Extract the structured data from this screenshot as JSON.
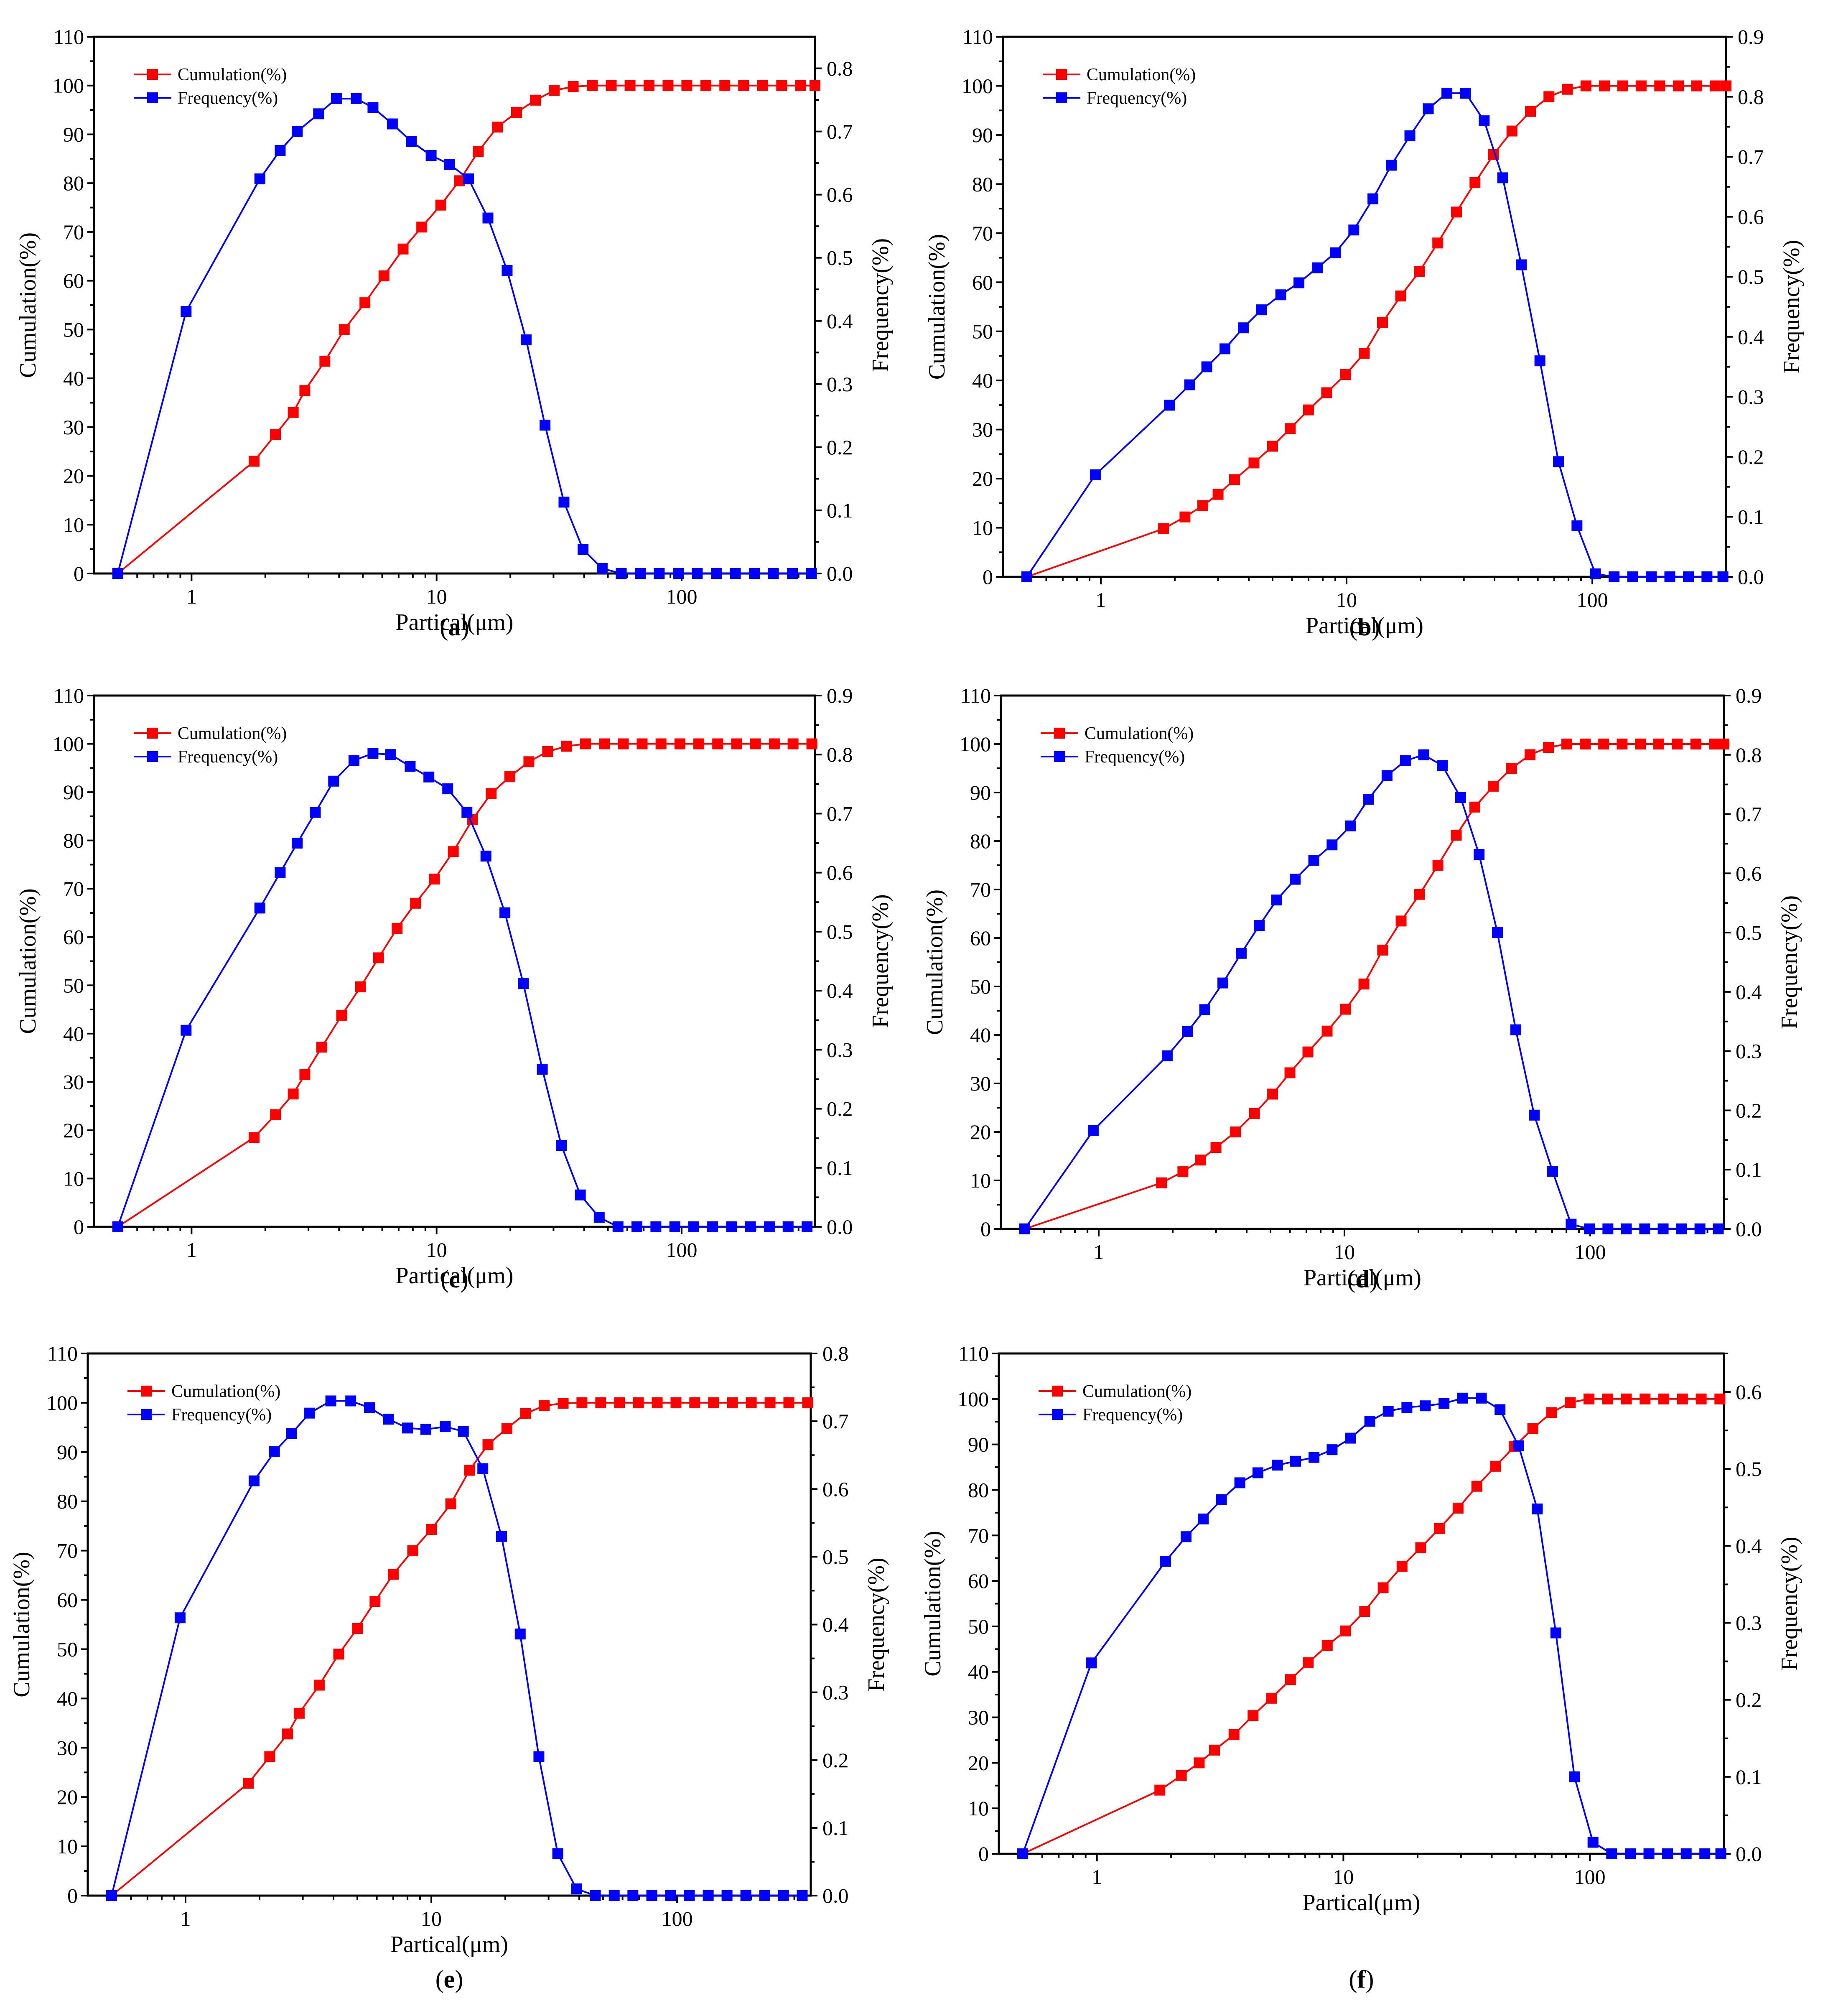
{
  "colors": {
    "cumulation": "#ff0000",
    "frequency": "#0000ff"
  },
  "chart_data": [
    {
      "panel": "a",
      "caption_open": "(",
      "caption_letter": "a",
      "caption_close": ")",
      "type": "line",
      "xscale": "log",
      "xlabel": "Partical(μm)",
      "ylabel": "Cumulation(%)",
      "y2label": "Frequency(%)",
      "xlim": [
        0.4,
        350
      ],
      "xticks": [
        1,
        10,
        100
      ],
      "xtick_labels": [
        "1",
        "10",
        "100"
      ],
      "ylim": [
        0,
        110
      ],
      "yticks": [
        0,
        10,
        20,
        30,
        40,
        50,
        60,
        70,
        80,
        90,
        100,
        110
      ],
      "ytick_labels": [
        "0",
        "10",
        "20",
        "30",
        "40",
        "50",
        "60",
        "70",
        "80",
        "90",
        "100",
        "110"
      ],
      "y2lim": [
        0,
        0.85
      ],
      "y2ticks": [
        0.0,
        0.1,
        0.2,
        0.3,
        0.4,
        0.5,
        0.6,
        0.7,
        0.8
      ],
      "y2tick_labels": [
        "0.0",
        "0.1",
        "0.2",
        "0.3",
        "0.4",
        "0.5",
        "0.6",
        "0.7",
        "0.8"
      ],
      "legend": [
        "Cumulation(%)",
        "Frequency(%)"
      ],
      "cum_x": [
        0.5,
        1.8,
        2.2,
        2.6,
        2.9,
        3.5,
        4.2,
        5.1,
        6.1,
        7.3,
        8.7,
        10.4,
        12.4,
        14.8,
        17.7,
        21.2,
        25.3,
        30.2,
        36.1,
        43.2,
        51.6,
        61.6,
        73.6,
        88,
        105,
        125.6,
        150,
        179,
        214,
        256,
        306,
        350
      ],
      "cum_y": [
        0,
        23,
        28.5,
        33,
        37.5,
        43.5,
        50,
        55.5,
        61,
        66.5,
        71,
        75.5,
        80.5,
        86.5,
        91.5,
        94.5,
        97,
        99,
        99.8,
        100,
        100,
        100,
        100,
        100,
        100,
        100,
        100,
        100,
        100,
        100,
        100,
        100
      ],
      "freq_x": [
        0.5,
        0.95,
        1.9,
        2.3,
        2.7,
        3.3,
        3.9,
        4.7,
        5.5,
        6.6,
        7.9,
        9.5,
        11.3,
        13.5,
        16.2,
        19.4,
        23.2,
        27.7,
        33.1,
        39.6,
        47.4,
        56.7,
        67.8,
        81,
        96.9,
        115.8,
        138.5,
        165.6,
        198,
        236.8,
        283.2,
        338.6
      ],
      "freq_y": [
        0,
        0.415,
        0.625,
        0.67,
        0.7,
        0.728,
        0.752,
        0.752,
        0.738,
        0.712,
        0.684,
        0.662,
        0.648,
        0.625,
        0.563,
        0.48,
        0.37,
        0.235,
        0.113,
        0.038,
        0.008,
        0,
        0,
        0,
        0,
        0,
        0,
        0,
        0,
        0,
        0,
        0
      ]
    },
    {
      "panel": "b",
      "caption_open": "(",
      "caption_letter": "b",
      "caption_close": ")",
      "type": "line",
      "xscale": "log",
      "xlabel": "Partical(μm)",
      "ylabel": "Cumulation(%)",
      "y2label": "Frequency(%)",
      "xlim": [
        0.4,
        350
      ],
      "xticks": [
        1,
        10,
        100
      ],
      "xtick_labels": [
        "1",
        "10",
        "100"
      ],
      "ylim": [
        0,
        110
      ],
      "yticks": [
        0,
        10,
        20,
        30,
        40,
        50,
        60,
        70,
        80,
        90,
        100,
        110
      ],
      "ytick_labels": [
        "0",
        "10",
        "20",
        "30",
        "40",
        "50",
        "60",
        "70",
        "80",
        "90",
        "100",
        "110"
      ],
      "y2lim": [
        0,
        0.9
      ],
      "y2ticks": [
        0.0,
        0.1,
        0.2,
        0.3,
        0.4,
        0.5,
        0.6,
        0.7,
        0.8,
        0.9
      ],
      "y2tick_labels": [
        "0.0",
        "0.1",
        "0.2",
        "0.3",
        "0.4",
        "0.5",
        "0.6",
        "0.7",
        "0.8",
        "0.9"
      ],
      "legend": [
        "Cumulation(%)",
        "Frequency(%)"
      ],
      "cum_x": [
        0.5,
        1.8,
        2.2,
        2.6,
        3.0,
        3.5,
        4.2,
        5.0,
        5.9,
        7.0,
        8.3,
        9.9,
        11.8,
        14.0,
        16.6,
        19.8,
        23.5,
        28.0,
        33.3,
        39.6,
        47.1,
        56.0,
        66.6,
        79.2,
        94.2,
        112,
        133,
        158,
        188,
        224,
        266,
        316,
        350
      ],
      "cum_y": [
        0,
        9.8,
        12.2,
        14.5,
        16.8,
        19.8,
        23.2,
        26.6,
        30.2,
        34,
        37.5,
        41.2,
        45.5,
        51.8,
        57.2,
        62.2,
        68,
        74.3,
        80.3,
        86,
        90.8,
        94.8,
        97.8,
        99.3,
        100,
        100,
        100,
        100,
        100,
        100,
        100,
        100,
        100
      ],
      "freq_x": [
        0.5,
        0.95,
        1.9,
        2.3,
        2.7,
        3.2,
        3.8,
        4.5,
        5.4,
        6.4,
        7.6,
        9.0,
        10.7,
        12.8,
        15.2,
        18.1,
        21.5,
        25.6,
        30.5,
        36.3,
        43.2,
        51.4,
        61.2,
        72.8,
        86.6,
        103,
        122.6,
        146,
        173.7,
        206.7,
        246,
        292.7,
        340
      ],
      "freq_y": [
        0,
        0.17,
        0.286,
        0.32,
        0.35,
        0.38,
        0.415,
        0.445,
        0.47,
        0.49,
        0.515,
        0.54,
        0.578,
        0.63,
        0.686,
        0.735,
        0.78,
        0.806,
        0.806,
        0.76,
        0.665,
        0.52,
        0.36,
        0.192,
        0.085,
        0.005,
        0,
        0,
        0,
        0,
        0,
        0,
        0
      ]
    },
    {
      "panel": "c",
      "caption_open": "(",
      "caption_letter": "c",
      "caption_close": ")",
      "type": "line",
      "xscale": "log",
      "xlabel": "Partical(μm)",
      "ylabel": "Cumulation(%)",
      "y2label": "Frequency(%)",
      "xlim": [
        0.4,
        350
      ],
      "xticks": [
        1,
        10,
        100
      ],
      "xtick_labels": [
        "1",
        "10",
        "100"
      ],
      "ylim": [
        0,
        110
      ],
      "yticks": [
        0,
        10,
        20,
        30,
        40,
        50,
        60,
        70,
        80,
        90,
        100,
        110
      ],
      "ytick_labels": [
        "0",
        "10",
        "20",
        "30",
        "40",
        "50",
        "60",
        "70",
        "80",
        "90",
        "100",
        "110"
      ],
      "y2lim": [
        0,
        0.9
      ],
      "y2ticks": [
        0.0,
        0.1,
        0.2,
        0.3,
        0.4,
        0.5,
        0.6,
        0.7,
        0.8,
        0.9
      ],
      "y2tick_labels": [
        "0.0",
        "0.1",
        "0.2",
        "0.3",
        "0.4",
        "0.5",
        "0.6",
        "0.7",
        "0.8",
        "0.9"
      ],
      "legend": [
        "Cumulation(%)",
        "Frequency(%)"
      ],
      "cum_x": [
        0.5,
        1.8,
        2.2,
        2.6,
        2.9,
        3.4,
        4.1,
        4.9,
        5.8,
        6.9,
        8.2,
        9.8,
        11.7,
        14.0,
        16.7,
        19.9,
        23.8,
        28.4,
        33.9,
        40.5,
        48.4,
        57.8,
        69.0,
        82.4,
        98.4,
        117.5,
        140.3,
        167.6,
        200,
        239,
        285,
        340
      ],
      "cum_y": [
        0,
        18.5,
        23.2,
        27.5,
        31.5,
        37.2,
        43.8,
        49.7,
        55.7,
        61.8,
        67,
        72,
        77.7,
        84.3,
        89.7,
        93.2,
        96.3,
        98.4,
        99.5,
        100,
        100,
        100,
        100,
        100,
        100,
        100,
        100,
        100,
        100,
        100,
        100,
        100
      ],
      "freq_x": [
        0.5,
        0.95,
        1.9,
        2.3,
        2.7,
        3.2,
        3.8,
        4.6,
        5.5,
        6.5,
        7.8,
        9.3,
        11.1,
        13.3,
        15.9,
        19.0,
        22.6,
        27.0,
        32.3,
        38.6,
        46.1,
        55.0,
        65.7,
        78.5,
        93.8,
        112,
        133.8,
        159.8,
        190.9,
        228,
        272,
        325
      ],
      "freq_y": [
        0,
        0.333,
        0.54,
        0.6,
        0.65,
        0.702,
        0.755,
        0.79,
        0.802,
        0.8,
        0.78,
        0.762,
        0.742,
        0.702,
        0.628,
        0.532,
        0.412,
        0.267,
        0.138,
        0.054,
        0.016,
        0,
        0,
        0,
        0,
        0,
        0,
        0,
        0,
        0,
        0,
        0
      ]
    },
    {
      "panel": "d",
      "caption_open": "(",
      "caption_letter": "d",
      "caption_close": ")",
      "type": "line",
      "xscale": "log",
      "xlabel": "Partical(μm)",
      "ylabel": "Cumulation(%)",
      "y2label": "Frequency(%)",
      "xlim": [
        0.4,
        350
      ],
      "xticks": [
        1,
        10,
        100
      ],
      "xtick_labels": [
        "1",
        "10",
        "100"
      ],
      "ylim": [
        0,
        110
      ],
      "yticks": [
        0,
        10,
        20,
        30,
        40,
        50,
        60,
        70,
        80,
        90,
        100,
        110
      ],
      "ytick_labels": [
        "0",
        "10",
        "20",
        "30",
        "40",
        "50",
        "60",
        "70",
        "80",
        "90",
        "100",
        "110"
      ],
      "y2lim": [
        0,
        0.9
      ],
      "y2ticks": [
        0.0,
        0.1,
        0.2,
        0.3,
        0.4,
        0.5,
        0.6,
        0.7,
        0.8,
        0.9
      ],
      "y2tick_labels": [
        "0.0",
        "0.1",
        "0.2",
        "0.3",
        "0.4",
        "0.5",
        "0.6",
        "0.7",
        "0.8",
        "0.9"
      ],
      "legend": [
        "Cumulation(%)",
        "Frequency(%)"
      ],
      "cum_x": [
        0.5,
        1.8,
        2.2,
        2.6,
        3.0,
        3.6,
        4.3,
        5.1,
        6.0,
        7.1,
        8.5,
        10.1,
        12.0,
        14.3,
        17.0,
        20.2,
        24.0,
        28.5,
        33.9,
        40.3,
        47.9,
        56.9,
        67.6,
        80.3,
        95.4,
        113.4,
        134.8,
        160,
        190,
        226,
        269,
        320,
        350
      ],
      "cum_y": [
        0,
        9.5,
        11.8,
        14.2,
        16.8,
        20,
        23.8,
        27.8,
        32.2,
        36.5,
        40.8,
        45.3,
        50.5,
        57.5,
        63.5,
        69,
        75,
        81.2,
        87,
        91.3,
        95,
        97.8,
        99.3,
        100,
        100,
        100,
        100,
        100,
        100,
        100,
        100,
        100,
        100
      ],
      "freq_x": [
        0.5,
        0.95,
        1.9,
        2.3,
        2.7,
        3.2,
        3.8,
        4.5,
        5.3,
        6.3,
        7.5,
        8.9,
        10.6,
        12.5,
        14.9,
        17.7,
        21.0,
        25.0,
        29.7,
        35.3,
        41.9,
        49.8,
        59.2,
        70.3,
        83.6,
        99.3,
        118,
        140.2,
        166.6,
        198,
        235.3,
        279.6,
        332
      ],
      "freq_y": [
        0,
        0.166,
        0.292,
        0.333,
        0.37,
        0.415,
        0.465,
        0.512,
        0.555,
        0.59,
        0.622,
        0.648,
        0.68,
        0.725,
        0.765,
        0.79,
        0.8,
        0.782,
        0.728,
        0.632,
        0.5,
        0.336,
        0.192,
        0.097,
        0.008,
        0,
        0,
        0,
        0,
        0,
        0,
        0,
        0
      ]
    },
    {
      "panel": "e",
      "caption_open": "(",
      "caption_letter": "e",
      "caption_close": ")",
      "type": "line",
      "xscale": "log",
      "xlabel": "Partical(μm)",
      "ylabel": "Cumulation(%)",
      "y2label": "Frequency(%)",
      "xlim": [
        0.4,
        350
      ],
      "xticks": [
        1,
        10,
        100
      ],
      "xtick_labels": [
        "1",
        "10",
        "100"
      ],
      "ylim": [
        0,
        110
      ],
      "yticks": [
        0,
        10,
        20,
        30,
        40,
        50,
        60,
        70,
        80,
        90,
        100,
        110
      ],
      "ytick_labels": [
        "0",
        "10",
        "20",
        "30",
        "40",
        "50",
        "60",
        "70",
        "80",
        "90",
        "100",
        "110"
      ],
      "y2lim": [
        0,
        0.8
      ],
      "y2ticks": [
        0.0,
        0.1,
        0.2,
        0.3,
        0.4,
        0.5,
        0.6,
        0.7,
        0.8
      ],
      "y2tick_labels": [
        "0.0",
        "0.1",
        "0.2",
        "0.3",
        "0.4",
        "0.5",
        "0.6",
        "0.7",
        "0.8"
      ],
      "legend": [
        "Cumulation(%)",
        "Frequency(%)"
      ],
      "cum_x": [
        0.5,
        1.8,
        2.2,
        2.6,
        2.9,
        3.5,
        4.2,
        5.0,
        5.9,
        7.0,
        8.4,
        10.0,
        12.0,
        14.3,
        17.0,
        20.3,
        24.2,
        28.8,
        34.4,
        41.0,
        48.9,
        58.3,
        69.6,
        83.0,
        99.0,
        118,
        140.8,
        168,
        200.4,
        239,
        285,
        340
      ],
      "cum_y": [
        0,
        22.8,
        28.2,
        32.8,
        37,
        42.7,
        49,
        54.2,
        59.7,
        65.2,
        70,
        74.3,
        79.5,
        86.3,
        91.5,
        94.8,
        97.8,
        99.4,
        99.9,
        100,
        100,
        100,
        100,
        100,
        100,
        100,
        100,
        100,
        100,
        100,
        100,
        100
      ],
      "freq_x": [
        0.5,
        0.95,
        1.9,
        2.3,
        2.7,
        3.2,
        3.9,
        4.7,
        5.6,
        6.7,
        8.0,
        9.5,
        11.4,
        13.5,
        16.2,
        19.3,
        23.0,
        27.4,
        32.7,
        39.0,
        46.5,
        55.5,
        66.1,
        78.9,
        94.1,
        112.2,
        133.9,
        159.7,
        190.5,
        227.2,
        271,
        323
      ],
      "freq_y": [
        0,
        0.41,
        0.612,
        0.655,
        0.682,
        0.712,
        0.73,
        0.73,
        0.72,
        0.703,
        0.69,
        0.688,
        0.692,
        0.685,
        0.63,
        0.53,
        0.386,
        0.205,
        0.062,
        0.01,
        0,
        0,
        0,
        0,
        0,
        0,
        0,
        0,
        0,
        0,
        0,
        0
      ]
    },
    {
      "panel": "f",
      "caption_open": "(",
      "caption_letter": "f",
      "caption_close": ")",
      "type": "line",
      "xscale": "log",
      "xlabel": "Partical(μm)",
      "ylabel": "Cumulation(%)",
      "y2label": "Frequency(%)",
      "xlim": [
        0.4,
        350
      ],
      "xticks": [
        1,
        10,
        100
      ],
      "xtick_labels": [
        "1",
        "10",
        "100"
      ],
      "ylim": [
        0,
        110
      ],
      "yticks": [
        0,
        10,
        20,
        30,
        40,
        50,
        60,
        70,
        80,
        90,
        100,
        110
      ],
      "ytick_labels": [
        "0",
        "10",
        "20",
        "30",
        "40",
        "50",
        "60",
        "70",
        "80",
        "90",
        "100",
        "110"
      ],
      "y2lim": [
        0,
        0.65
      ],
      "y2ticks": [
        0.0,
        0.1,
        0.2,
        0.3,
        0.4,
        0.5,
        0.6
      ],
      "y2tick_labels": [
        "0.0",
        "0.1",
        "0.2",
        "0.3",
        "0.4",
        "0.5",
        "0.6"
      ],
      "legend": [
        "Cumulation(%)",
        "Frequency(%)"
      ],
      "cum_x": [
        0.5,
        1.8,
        2.2,
        2.6,
        3.0,
        3.6,
        4.3,
        5.1,
        6.1,
        7.2,
        8.6,
        10.2,
        12.2,
        14.5,
        17.3,
        20.6,
        24.5,
        29.2,
        34.8,
        41.4,
        49.3,
        58.7,
        69.9,
        83.3,
        99.2,
        118,
        140.6,
        167.5,
        199.5,
        237.6,
        283,
        337
      ],
      "cum_y": [
        0,
        14,
        17.2,
        20,
        22.8,
        26.2,
        30.4,
        34.2,
        38.3,
        42,
        45.8,
        49,
        53.3,
        58.5,
        63.2,
        67.3,
        71.5,
        76,
        80.8,
        85.2,
        89.5,
        93.5,
        97,
        99.2,
        100,
        100,
        100,
        100,
        100,
        100,
        100,
        100
      ],
      "freq_x": [
        0.5,
        0.95,
        1.9,
        2.3,
        2.7,
        3.2,
        3.8,
        4.5,
        5.4,
        6.4,
        7.6,
        9.0,
        10.7,
        12.8,
        15.2,
        18.1,
        21.5,
        25.6,
        30.5,
        36.3,
        43.2,
        51.4,
        61.2,
        72.8,
        86.6,
        103,
        122.6,
        146,
        173.7,
        206.7,
        246,
        292.7,
        340
      ],
      "freq_y": [
        0,
        0.248,
        0.38,
        0.412,
        0.435,
        0.46,
        0.482,
        0.495,
        0.505,
        0.51,
        0.515,
        0.525,
        0.54,
        0.562,
        0.575,
        0.58,
        0.582,
        0.585,
        0.592,
        0.592,
        0.577,
        0.53,
        0.448,
        0.287,
        0.1,
        0.015,
        0,
        0,
        0,
        0,
        0,
        0,
        0
      ]
    }
  ]
}
